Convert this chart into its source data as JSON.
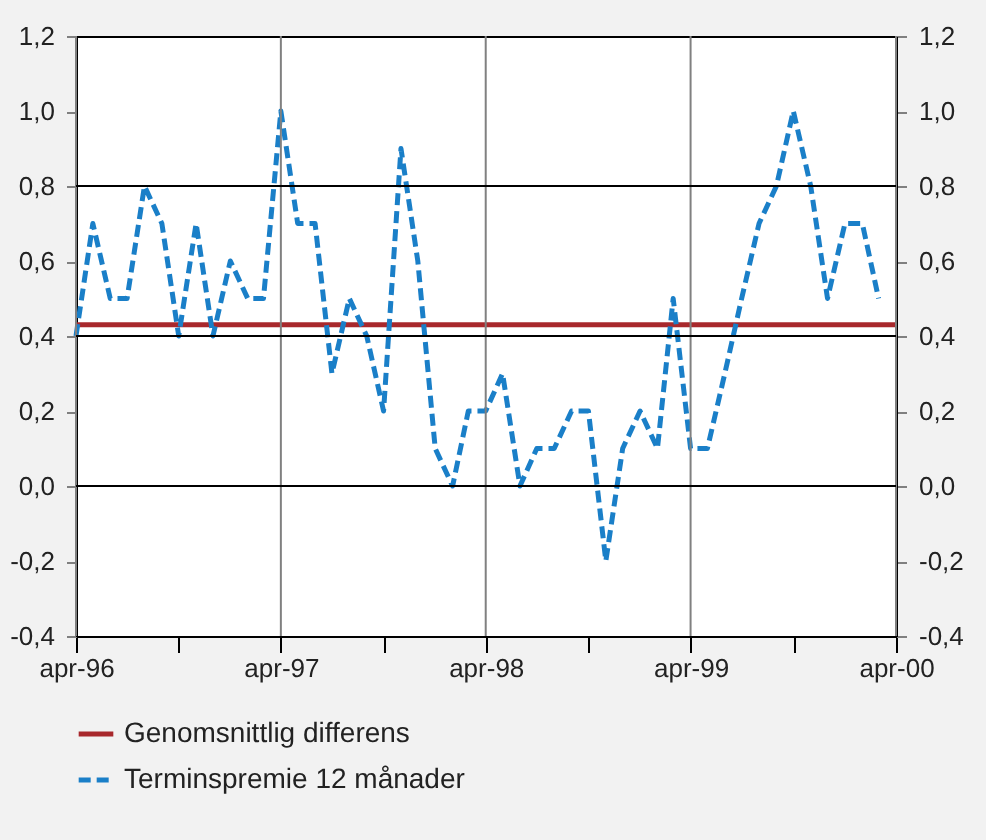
{
  "chart_data": {
    "type": "line",
    "x": [
      "1996-04",
      "1996-05",
      "1996-06",
      "1996-07",
      "1996-08",
      "1996-09",
      "1996-10",
      "1996-11",
      "1996-12",
      "1997-01",
      "1997-02",
      "1997-03",
      "1997-04",
      "1997-05",
      "1997-06",
      "1997-07",
      "1997-08",
      "1997-09",
      "1997-10",
      "1997-11",
      "1997-12",
      "1998-01",
      "1998-02",
      "1998-03",
      "1998-04",
      "1998-05",
      "1998-06",
      "1998-07",
      "1998-08",
      "1998-09",
      "1998-10",
      "1998-11",
      "1998-12",
      "1999-01",
      "1999-02",
      "1999-03",
      "1999-04",
      "1999-05",
      "1999-06",
      "1999-07",
      "1999-08",
      "1999-09",
      "1999-10",
      "1999-11",
      "1999-12",
      "2000-01",
      "2000-02",
      "2000-03"
    ],
    "series": [
      {
        "name": "Genomsnittlig differens",
        "color": "#a8282c",
        "x": [
          "1996-04",
          "2000-04"
        ],
        "values": [
          0.43,
          0.43
        ],
        "line_style": "solid"
      },
      {
        "name": "Terminspremie 12 månader",
        "color": "#1a7fc8",
        "line_style": "dashed",
        "values": [
          0.4,
          0.7,
          0.5,
          0.5,
          0.8,
          0.7,
          0.4,
          0.7,
          0.4,
          0.6,
          0.5,
          0.5,
          1.0,
          0.7,
          0.7,
          0.3,
          0.5,
          0.4,
          0.2,
          0.9,
          0.6,
          0.1,
          0.0,
          0.2,
          0.2,
          0.3,
          0.0,
          0.1,
          0.1,
          0.2,
          0.2,
          -0.2,
          0.1,
          0.2,
          0.1,
          0.5,
          0.1,
          0.1,
          0.3,
          0.5,
          0.7,
          0.8,
          1.0,
          0.8,
          0.5,
          0.7,
          0.7,
          0.5
        ]
      }
    ],
    "xlim": [
      "1996-04",
      "2000-04"
    ],
    "xticks": [
      {
        "value": "1996-04",
        "label": "apr-96"
      },
      {
        "value": "1996-10",
        "label": null
      },
      {
        "value": "1997-04",
        "label": "apr-97"
      },
      {
        "value": "1997-10",
        "label": null
      },
      {
        "value": "1998-04",
        "label": "apr-98"
      },
      {
        "value": "1998-10",
        "label": null
      },
      {
        "value": "1999-04",
        "label": "apr-99"
      },
      {
        "value": "1999-10",
        "label": null
      },
      {
        "value": "2000-04",
        "label": "apr-00"
      }
    ],
    "ylim": [
      -0.4,
      1.2
    ],
    "yticks": [
      {
        "value": -0.4,
        "label": "-0,4"
      },
      {
        "value": -0.2,
        "label": "-0,2"
      },
      {
        "value": 0,
        "label": "0,0"
      },
      {
        "value": 0.2,
        "label": "0,2"
      },
      {
        "value": 0.4,
        "label": "0,4"
      },
      {
        "value": 0.6,
        "label": "0,6"
      },
      {
        "value": 0.8,
        "label": "0,8"
      },
      {
        "value": 1.0,
        "label": "1,0"
      },
      {
        "value": 1.2,
        "label": "1,2"
      }
    ],
    "y2lim": [
      -0.4,
      1.2
    ],
    "y2ticks": [
      {
        "value": -0.4,
        "label": "-0,4"
      },
      {
        "value": -0.2,
        "label": "-0,2"
      },
      {
        "value": 0,
        "label": "0,0"
      },
      {
        "value": 0.2,
        "label": "0,2"
      },
      {
        "value": 0.4,
        "label": "0,4"
      },
      {
        "value": 0.6,
        "label": "0,6"
      },
      {
        "value": 0.8,
        "label": "0,8"
      },
      {
        "value": 1.0,
        "label": "1,0"
      },
      {
        "value": 1.2,
        "label": "1,2"
      }
    ],
    "grid": "x",
    "ref_lines": [
      {
        "axis": "y",
        "value": 0,
        "color": "#000000"
      },
      {
        "axis": "y",
        "value": 0.4,
        "color": "#000000"
      },
      {
        "axis": "y",
        "value": 0.8,
        "color": "#000000"
      }
    ],
    "legend": "bottom"
  }
}
